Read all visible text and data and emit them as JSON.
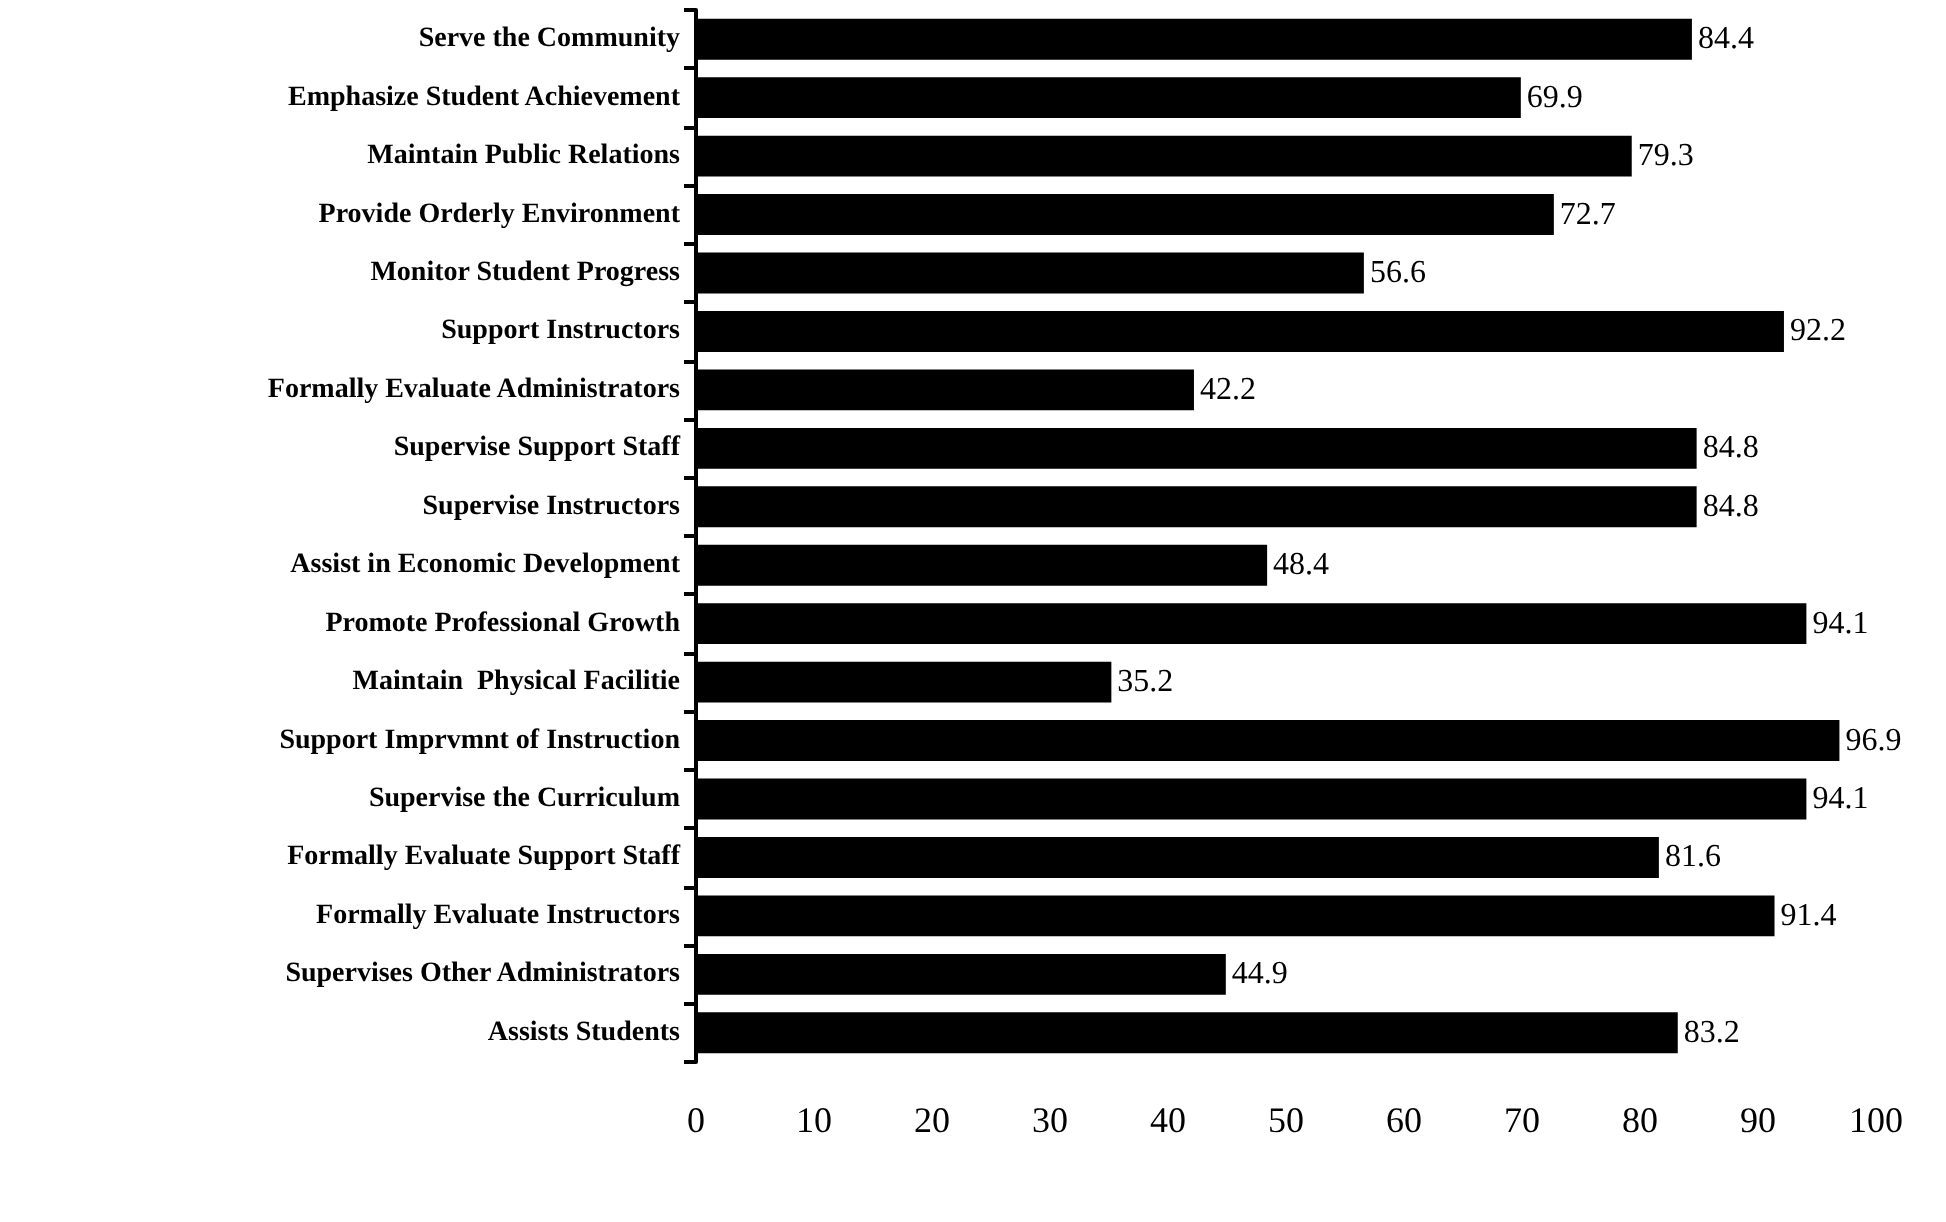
{
  "chart_data": {
    "type": "bar",
    "orientation": "horizontal",
    "categories": [
      "Serve the Community",
      "Emphasize Student Achievement",
      "Maintain Public Relations",
      "Provide Orderly Environment",
      "Monitor Student Progress",
      "Support Instructors",
      "Formally Evaluate Administrators",
      "Supervise Support Staff",
      "Supervise Instructors",
      "Assist in Economic Development",
      "Promote Professional Growth",
      "Maintain  Physical Facilitie",
      "Support Imprvmnt of Instruction",
      "Supervise the Curriculum",
      "Formally Evaluate Support Staff",
      "Formally Evaluate Instructors",
      "Supervises Other Administrators",
      "Assists Students"
    ],
    "values": [
      84.4,
      69.9,
      79.3,
      72.7,
      56.6,
      92.2,
      42.2,
      84.8,
      84.8,
      48.4,
      94.1,
      35.2,
      96.9,
      94.1,
      81.6,
      91.4,
      44.9,
      83.2
    ],
    "color": "#000000",
    "xlim": [
      0,
      100
    ],
    "xticks": [
      0,
      10,
      20,
      30,
      40,
      50,
      60,
      70,
      80,
      90,
      100
    ],
    "grid": false,
    "data_labels": true
  }
}
